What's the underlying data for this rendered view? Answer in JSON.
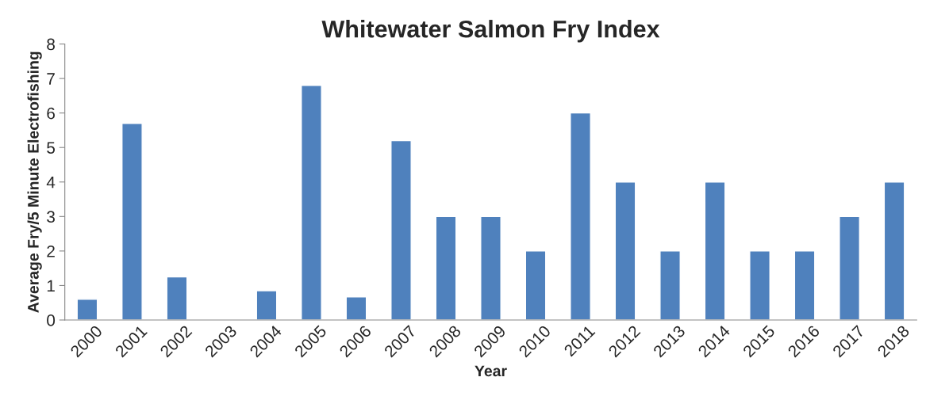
{
  "chart_data": {
    "type": "bar",
    "title": "Whitewater Salmon Fry Index",
    "xlabel": "Year",
    "ylabel": "Average Fry/5 Minute Electrofishing",
    "categories": [
      "2000",
      "2001",
      "2002",
      "2003",
      "2004",
      "2005",
      "2006",
      "2007",
      "2008",
      "2009",
      "2010",
      "2011",
      "2012",
      "2013",
      "2014",
      "2015",
      "2016",
      "2017",
      "2018"
    ],
    "values": [
      0.6,
      5.7,
      1.25,
      null,
      0.85,
      6.8,
      0.67,
      5.2,
      3,
      3,
      2,
      6,
      4,
      2,
      4,
      2,
      2,
      3,
      4
    ],
    "color": "#4f81bd",
    "ylim": [
      0,
      8
    ],
    "yticks": [
      0,
      1,
      2,
      3,
      4,
      5,
      6,
      7,
      8
    ],
    "grid": false,
    "legend": false
  }
}
